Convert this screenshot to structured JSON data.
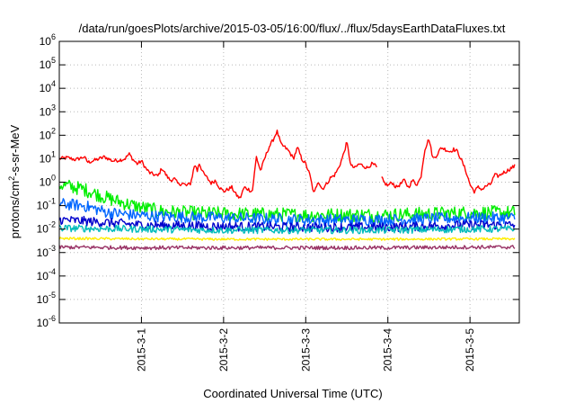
{
  "chart_data": {
    "type": "line",
    "title": "/data/run/goesPlots/archive/2015-03-05/16:00/flux/../flux/5daysEarthDataFluxes.txt",
    "xlabel": "Coordinated Universal Time (UTC)",
    "ylabel": {
      "prefix": "protons/cm",
      "exponent": "2",
      "suffix": "-s-sr-MeV"
    },
    "yscale": "log",
    "ylim": [
      1e-06,
      1000000.0
    ],
    "y_ticks": [
      {
        "base": "10",
        "exp": "6"
      },
      {
        "base": "10",
        "exp": "5"
      },
      {
        "base": "10",
        "exp": "4"
      },
      {
        "base": "10",
        "exp": "3"
      },
      {
        "base": "10",
        "exp": "2"
      },
      {
        "base": "10",
        "exp": "1"
      },
      {
        "base": "10",
        "exp": "0"
      },
      {
        "base": "10",
        "exp": "-1"
      },
      {
        "base": "10",
        "exp": "-2"
      },
      {
        "base": "10",
        "exp": "-3"
      },
      {
        "base": "10",
        "exp": "-4"
      },
      {
        "base": "10",
        "exp": "-5"
      },
      {
        "base": "10",
        "exp": "-6"
      }
    ],
    "xlim": [
      0,
      5.6
    ],
    "x_ticks": [
      {
        "x": 1,
        "label": "2015-3-1"
      },
      {
        "x": 2,
        "label": "2015-3-2"
      },
      {
        "x": 3,
        "label": "2015-3-3"
      },
      {
        "x": 4,
        "label": "2015-3-4"
      },
      {
        "x": 5,
        "label": "2015-3-5"
      }
    ],
    "grid": true,
    "legend": "none",
    "series": [
      {
        "color": "#ff0000",
        "noise": 0.08,
        "gaps": [
          [
            3.87,
            3.92
          ]
        ],
        "points": [
          [
            0.0,
            10
          ],
          [
            0.1,
            11
          ],
          [
            0.2,
            9
          ],
          [
            0.3,
            12
          ],
          [
            0.35,
            7
          ],
          [
            0.45,
            9
          ],
          [
            0.55,
            12
          ],
          [
            0.65,
            8
          ],
          [
            0.75,
            9
          ],
          [
            0.8,
            10
          ],
          [
            0.85,
            16
          ],
          [
            0.9,
            9
          ],
          [
            0.95,
            6
          ],
          [
            1.0,
            8
          ],
          [
            1.05,
            4
          ],
          [
            1.1,
            2.5
          ],
          [
            1.2,
            1.8
          ],
          [
            1.25,
            4
          ],
          [
            1.3,
            2
          ],
          [
            1.35,
            1.2
          ],
          [
            1.4,
            1.4
          ],
          [
            1.45,
            0.8
          ],
          [
            1.5,
            0.9
          ],
          [
            1.55,
            0.7
          ],
          [
            1.6,
            0.9
          ],
          [
            1.65,
            6
          ],
          [
            1.68,
            3
          ],
          [
            1.7,
            7
          ],
          [
            1.75,
            2.5
          ],
          [
            1.8,
            1.5
          ],
          [
            1.85,
            0.9
          ],
          [
            1.9,
            1.2
          ],
          [
            1.95,
            0.6
          ],
          [
            2.0,
            0.4
          ],
          [
            2.1,
            0.6
          ],
          [
            2.15,
            0.3
          ],
          [
            2.2,
            0.2
          ],
          [
            2.25,
            0.6
          ],
          [
            2.3,
            0.5
          ],
          [
            2.35,
            0.4
          ],
          [
            2.4,
            12
          ],
          [
            2.45,
            3
          ],
          [
            2.5,
            10
          ],
          [
            2.55,
            30
          ],
          [
            2.6,
            60
          ],
          [
            2.65,
            150
          ],
          [
            2.7,
            40
          ],
          [
            2.75,
            30
          ],
          [
            2.8,
            20
          ],
          [
            2.85,
            10
          ],
          [
            2.9,
            30
          ],
          [
            2.95,
            10
          ],
          [
            3.0,
            6
          ],
          [
            3.05,
            2
          ],
          [
            3.1,
            0.3
          ],
          [
            3.15,
            1.2
          ],
          [
            3.2,
            0.5
          ],
          [
            3.25,
            0.8
          ],
          [
            3.3,
            1.5
          ],
          [
            3.35,
            2
          ],
          [
            3.4,
            4
          ],
          [
            3.45,
            12
          ],
          [
            3.5,
            50
          ],
          [
            3.55,
            5
          ],
          [
            3.6,
            4
          ],
          [
            3.65,
            6
          ],
          [
            3.7,
            5
          ],
          [
            3.75,
            4
          ],
          [
            3.8,
            6
          ],
          [
            3.85,
            5
          ],
          [
            3.95,
            1
          ],
          [
            4.0,
            0.7
          ],
          [
            4.05,
            1
          ],
          [
            4.1,
            0.6
          ],
          [
            4.15,
            0.8
          ],
          [
            4.2,
            1.2
          ],
          [
            4.25,
            0.6
          ],
          [
            4.3,
            1.2
          ],
          [
            4.35,
            0.8
          ],
          [
            4.4,
            1.5
          ],
          [
            4.45,
            25
          ],
          [
            4.5,
            70
          ],
          [
            4.55,
            10
          ],
          [
            4.6,
            15
          ],
          [
            4.65,
            30
          ],
          [
            4.7,
            25
          ],
          [
            4.75,
            20
          ],
          [
            4.8,
            25
          ],
          [
            4.85,
            20
          ],
          [
            4.9,
            8
          ],
          [
            4.95,
            3
          ],
          [
            5.0,
            0.8
          ],
          [
            5.05,
            0.4
          ],
          [
            5.1,
            0.6
          ],
          [
            5.15,
            0.5
          ],
          [
            5.2,
            0.7
          ],
          [
            5.25,
            0.8
          ],
          [
            5.3,
            2
          ],
          [
            5.35,
            1.8
          ],
          [
            5.4,
            2.5
          ],
          [
            5.45,
            3
          ],
          [
            5.5,
            4
          ],
          [
            5.55,
            5
          ]
        ]
      },
      {
        "color": "#00ee00",
        "noise": 0.3,
        "points": [
          [
            0.0,
            0.8
          ],
          [
            0.3,
            0.5
          ],
          [
            0.6,
            0.2
          ],
          [
            0.9,
            0.1
          ],
          [
            1.2,
            0.06
          ],
          [
            1.5,
            0.05
          ],
          [
            2.0,
            0.045
          ],
          [
            3.0,
            0.04
          ],
          [
            4.0,
            0.04
          ],
          [
            5.0,
            0.05
          ],
          [
            5.55,
            0.05
          ]
        ]
      },
      {
        "color": "#0066ff",
        "noise": 0.25,
        "points": [
          [
            0.0,
            0.12
          ],
          [
            0.3,
            0.1
          ],
          [
            0.6,
            0.05
          ],
          [
            0.9,
            0.04
          ],
          [
            1.2,
            0.035
          ],
          [
            2.0,
            0.03
          ],
          [
            3.0,
            0.025
          ],
          [
            4.0,
            0.025
          ],
          [
            5.0,
            0.03
          ],
          [
            5.55,
            0.03
          ]
        ]
      },
      {
        "color": "#0000cc",
        "noise": 0.2,
        "points": [
          [
            0.0,
            0.025
          ],
          [
            0.5,
            0.02
          ],
          [
            1.0,
            0.015
          ],
          [
            2.0,
            0.013
          ],
          [
            3.0,
            0.012
          ],
          [
            4.0,
            0.012
          ],
          [
            5.0,
            0.015
          ],
          [
            5.55,
            0.015
          ]
        ]
      },
      {
        "color": "#00bbbb",
        "noise": 0.15,
        "points": [
          [
            0.0,
            0.011
          ],
          [
            1.0,
            0.01
          ],
          [
            2.0,
            0.009
          ],
          [
            3.0,
            0.009
          ],
          [
            4.0,
            0.009
          ],
          [
            5.0,
            0.01
          ],
          [
            5.55,
            0.01
          ]
        ]
      },
      {
        "color": "#ffee00",
        "noise": 0.05,
        "points": [
          [
            0.0,
            0.004
          ],
          [
            1.0,
            0.0038
          ],
          [
            2.0,
            0.0037
          ],
          [
            3.0,
            0.0037
          ],
          [
            4.0,
            0.0037
          ],
          [
            5.0,
            0.0038
          ],
          [
            5.55,
            0.0038
          ]
        ]
      },
      {
        "color": "#993366",
        "noise": 0.08,
        "points": [
          [
            0.0,
            0.0017
          ],
          [
            1.0,
            0.0016
          ],
          [
            2.0,
            0.0016
          ],
          [
            3.0,
            0.0016
          ],
          [
            4.0,
            0.0016
          ],
          [
            5.0,
            0.0017
          ],
          [
            5.55,
            0.0017
          ]
        ]
      }
    ]
  }
}
